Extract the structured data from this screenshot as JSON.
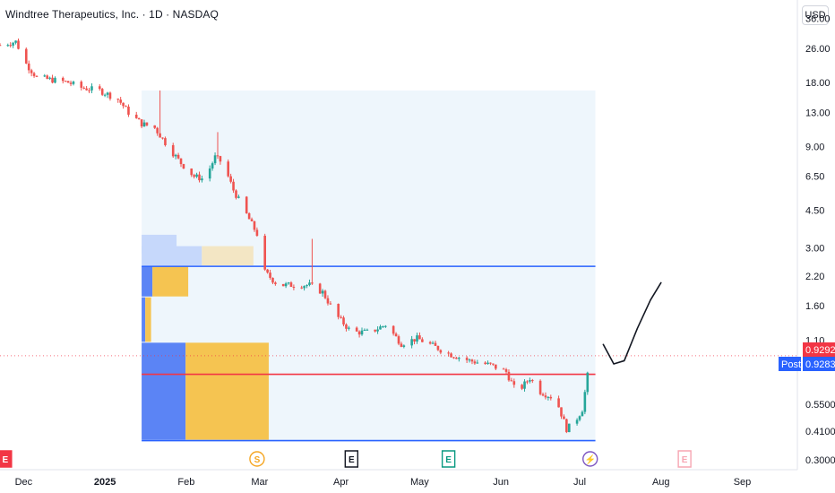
{
  "header": {
    "title": "Windtree Therapeutics, Inc. · 1D · NASDAQ",
    "currency": "USD"
  },
  "price_labels": {
    "last": "0.9292",
    "post_tag": "Post",
    "post": "0.9283"
  },
  "colors": {
    "up": "#26a69a",
    "down": "#ef5350",
    "level_blue": "#2962ff",
    "level_red": "#f23645",
    "vp_blue": "#5b84f5",
    "vp_yellow": "#f5c451",
    "range_bg": "#eef6fc"
  },
  "chart_data": {
    "type": "candlestick",
    "y_scale": "log",
    "ylim": [
      0.27,
      44
    ],
    "y_ticks": [
      36.0,
      26.0,
      18.0,
      13.0,
      9.0,
      6.5,
      4.5,
      3.0,
      2.2,
      1.6,
      1.1,
      0.55,
      0.41,
      0.3
    ],
    "y_tick_labels": [
      "36.00",
      "26.00",
      "18.00",
      "13.00",
      "9.00",
      "6.50",
      "4.50",
      "3.00",
      "2.20",
      "1.60",
      "1.10",
      "0.5500",
      "0.4100",
      "0.3000"
    ],
    "x_labels": [
      {
        "label": "Dec",
        "date": "2024-12-01",
        "bold": false
      },
      {
        "label": "2025",
        "date": "2025-01-01",
        "bold": true
      },
      {
        "label": "Feb",
        "date": "2025-02-01",
        "bold": false
      },
      {
        "label": "Mar",
        "date": "2025-03-01",
        "bold": false
      },
      {
        "label": "Apr",
        "date": "2025-04-01",
        "bold": false
      },
      {
        "label": "May",
        "date": "2025-05-01",
        "bold": false
      },
      {
        "label": "Jun",
        "date": "2025-06-01",
        "bold": false
      },
      {
        "label": "Jul",
        "date": "2025-07-01",
        "bold": false
      },
      {
        "label": "Aug",
        "date": "2025-08-01",
        "bold": false
      },
      {
        "label": "Sep",
        "date": "2025-09-01",
        "bold": false
      }
    ],
    "x_range": [
      "2024-11-22",
      "2025-09-22"
    ],
    "anchors": [
      [
        "2024-11-22",
        27.0
      ],
      [
        "2024-11-28",
        28.0
      ],
      [
        "2024-12-02",
        22.0
      ],
      [
        "2024-12-06",
        19.0
      ],
      [
        "2024-12-12",
        18.5
      ],
      [
        "2024-12-18",
        18.0
      ],
      [
        "2024-12-23",
        17.0
      ],
      [
        "2024-12-30",
        16.5
      ],
      [
        "2025-01-06",
        15.0
      ],
      [
        "2025-01-10",
        13.0
      ],
      [
        "2025-01-15",
        11.5
      ],
      [
        "2025-01-20",
        11.0
      ],
      [
        "2025-01-25",
        9.0
      ],
      [
        "2025-01-30",
        7.5
      ],
      [
        "2025-02-04",
        6.5
      ],
      [
        "2025-02-08",
        6.3
      ],
      [
        "2025-02-12",
        8.0
      ],
      [
        "2025-02-15",
        7.5
      ],
      [
        "2025-02-19",
        5.6
      ],
      [
        "2025-02-24",
        4.3
      ],
      [
        "2025-03-01",
        3.3
      ],
      [
        "2025-03-03",
        2.3
      ],
      [
        "2025-03-08",
        2.0
      ],
      [
        "2025-03-13",
        2.0
      ],
      [
        "2025-03-20",
        2.0
      ],
      [
        "2025-03-25",
        1.85
      ],
      [
        "2025-03-30",
        1.45
      ],
      [
        "2025-04-05",
        1.2
      ],
      [
        "2025-04-12",
        1.2
      ],
      [
        "2025-04-18",
        1.3
      ],
      [
        "2025-04-24",
        1.06
      ],
      [
        "2025-04-30",
        1.12
      ],
      [
        "2025-05-05",
        1.05
      ],
      [
        "2025-05-12",
        0.95
      ],
      [
        "2025-05-20",
        0.88
      ],
      [
        "2025-05-28",
        0.84
      ],
      [
        "2025-06-03",
        0.78
      ],
      [
        "2025-06-07",
        0.62
      ],
      [
        "2025-06-12",
        0.73
      ],
      [
        "2025-06-16",
        0.63
      ],
      [
        "2025-06-22",
        0.58
      ],
      [
        "2025-06-26",
        0.42
      ],
      [
        "2025-06-29",
        0.45
      ],
      [
        "2025-07-02",
        0.52
      ],
      [
        "2025-07-05",
        0.9
      ],
      [
        "2025-07-06",
        0.95
      ]
    ],
    "spikes": [
      {
        "date": "2025-01-22",
        "high": 16.5
      },
      {
        "date": "2025-02-13",
        "high": 10.5
      },
      {
        "date": "2025-03-21",
        "high": 3.3
      },
      {
        "date": "2025-06-14",
        "high": 1.05
      }
    ],
    "levels": [
      {
        "price": 2.45,
        "color": "#2962ff"
      },
      {
        "price": 0.76,
        "color": "#f23645"
      },
      {
        "price": 0.37,
        "color": "#2962ff"
      }
    ],
    "last_price": 0.9292,
    "post_price": 0.9283,
    "range_box": {
      "start": "2025-01-15",
      "end": "2025-07-07",
      "top": 16.5,
      "bottom": 0.37
    },
    "volume_profile": [
      {
        "low": 2.8,
        "high": 3.45,
        "blue": 0.58,
        "yellow": 0.0
      },
      {
        "low": 2.45,
        "high": 3.05,
        "blue": 1.0,
        "yellow": 0.62
      },
      {
        "low": 1.75,
        "high": 2.45,
        "blue": 0.18,
        "yellow": 0.43
      },
      {
        "low": 1.07,
        "high": 1.75,
        "blue": 0.06,
        "yellow": 0.07
      },
      {
        "low": 0.37,
        "high": 1.07,
        "blue": 0.73,
        "yellow": 1.0
      }
    ],
    "projection": [
      [
        "2025-07-10",
        1.05
      ],
      [
        "2025-07-14",
        0.85
      ],
      [
        "2025-07-18",
        0.88
      ],
      [
        "2025-07-23",
        1.25
      ],
      [
        "2025-07-28",
        1.7
      ],
      [
        "2025-08-01",
        2.05
      ]
    ],
    "events": [
      {
        "letter": "E",
        "date": "2024-11-24",
        "color": "#f23645",
        "style": "filled"
      },
      {
        "letter": "S",
        "date": "2025-02-28",
        "color": "#f5a623",
        "style": "circle"
      },
      {
        "letter": "E",
        "date": "2025-04-05",
        "color": "#131722",
        "style": "outline"
      },
      {
        "letter": "E",
        "date": "2025-05-12",
        "color": "#089981",
        "style": "outline"
      },
      {
        "letter": "⚡",
        "date": "2025-07-05",
        "color": "#7e57c2",
        "style": "circle"
      },
      {
        "letter": "E",
        "date": "2025-08-10",
        "color": "#f7a5b2",
        "style": "outline"
      }
    ]
  }
}
